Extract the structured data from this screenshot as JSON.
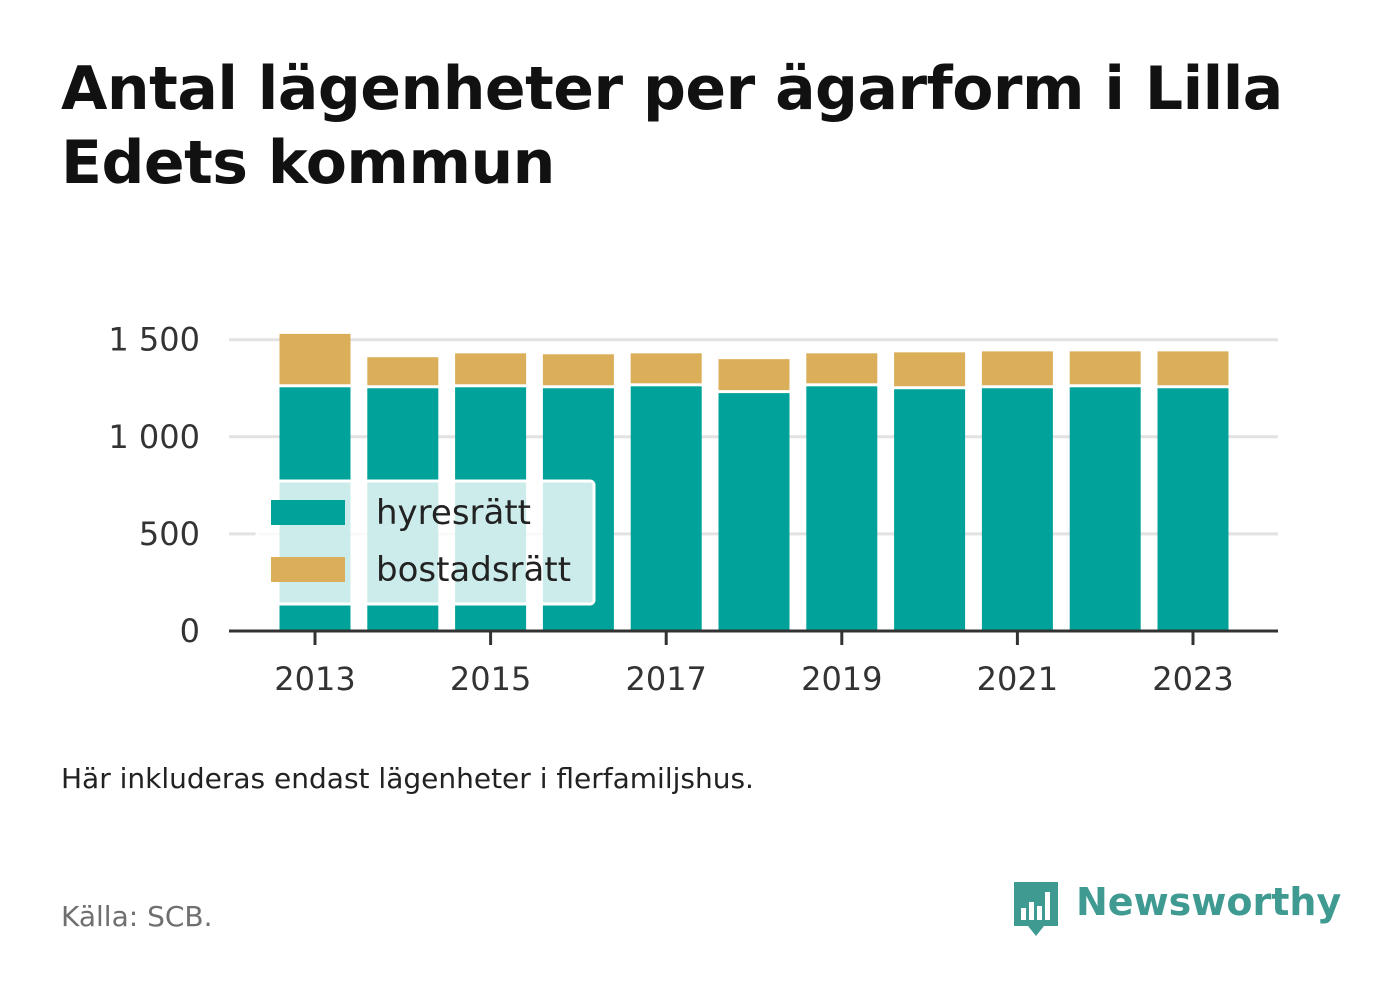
{
  "title": "Antal lägenheter per ägarform i Lilla Edets kommun",
  "note": "Här inkluderas endast lägenheter i flerfamiljshus.",
  "source": "Källa: SCB.",
  "brand": {
    "name": "Newsworthy",
    "icon": "bar-chart-speech-bubble-icon",
    "color": "#3f9a92"
  },
  "chart_data": {
    "type": "bar",
    "stacked": true,
    "x": [
      2013,
      2014,
      2015,
      2016,
      2017,
      2018,
      2019,
      2020,
      2021,
      2022,
      2023
    ],
    "x_tick_labels": [
      "2013",
      "2015",
      "2017",
      "2019",
      "2021",
      "2023"
    ],
    "y_tick_labels": [
      "0",
      "500",
      "1 000",
      "1 500"
    ],
    "y_ticks": [
      0,
      500,
      1000,
      1500
    ],
    "ylim": [
      0,
      1550
    ],
    "grid": true,
    "legend_position": "bottom-left",
    "series": [
      {
        "name": "hyresrätt",
        "color": "#00a29a",
        "values": [
          1255,
          1250,
          1255,
          1250,
          1260,
          1225,
          1260,
          1245,
          1250,
          1255,
          1250
        ]
      },
      {
        "name": "bostadsrätt",
        "color": "#dbaf5a",
        "values": [
          275,
          160,
          175,
          175,
          170,
          175,
          170,
          190,
          190,
          185,
          190
        ]
      }
    ]
  }
}
